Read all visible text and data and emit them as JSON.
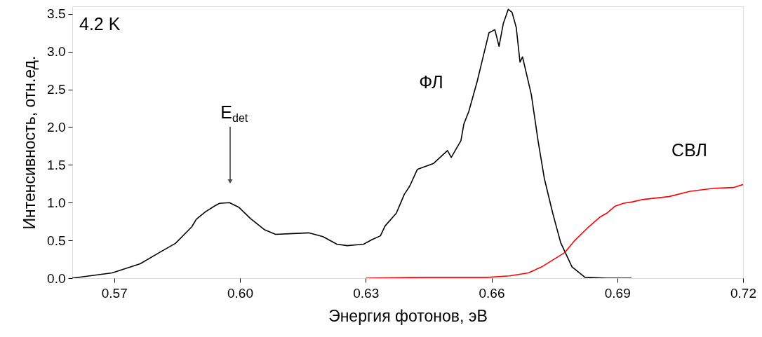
{
  "chart_data": {
    "type": "line",
    "xlabel": "Энергия фотонов, эВ",
    "ylabel": "Интенсивность, отн.ед.",
    "xlim": [
      0.56,
      0.72
    ],
    "ylim": [
      0,
      3.6
    ],
    "xticks": [
      {
        "value": 0.57,
        "label": "0.57"
      },
      {
        "value": 0.6,
        "label": "0.60"
      },
      {
        "value": 0.63,
        "label": "0.63"
      },
      {
        "value": 0.66,
        "label": "0.66"
      },
      {
        "value": 0.69,
        "label": "0.69"
      },
      {
        "value": 0.72,
        "label": "0.72"
      }
    ],
    "yticks": [
      {
        "value": 0,
        "label": "0.0"
      },
      {
        "value": 0.5,
        "label": "0.5"
      },
      {
        "value": 1,
        "label": "1.0"
      },
      {
        "value": 1.5,
        "label": "1.5"
      },
      {
        "value": 2,
        "label": "2.0"
      },
      {
        "value": 2.5,
        "label": "2.5"
      },
      {
        "value": 3,
        "label": "3.0"
      },
      {
        "value": 3.5,
        "label": "3.5"
      }
    ],
    "grid": false,
    "marker": "none",
    "line_style": "solid",
    "annotations": [
      "4.2 K",
      "E$_{det}$"
    ],
    "series": [
      {
        "name": "ФЛ",
        "color": "#000000",
        "x": [
          0.56,
          0.5695,
          0.5762,
          0.5808,
          0.5846,
          0.5885,
          0.5896,
          0.5918,
          0.5941,
          0.5951,
          0.5975,
          0.5997,
          0.6025,
          0.6059,
          0.6085,
          0.6126,
          0.6164,
          0.6198,
          0.6231,
          0.6256,
          0.6295,
          0.6315,
          0.6335,
          0.6346,
          0.6373,
          0.6392,
          0.6405,
          0.6423,
          0.6462,
          0.6495,
          0.6504,
          0.6527,
          0.6534,
          0.6546,
          0.6566,
          0.6583,
          0.6594,
          0.6608,
          0.6618,
          0.6628,
          0.664,
          0.6649,
          0.6659,
          0.6668,
          0.6674,
          0.6695,
          0.6711,
          0.6726,
          0.6746,
          0.6765,
          0.6792,
          0.6823,
          0.6875,
          0.6934
        ],
        "values": [
          0.0,
          0.07,
          0.19,
          0.34,
          0.46,
          0.68,
          0.78,
          0.88,
          0.96,
          0.99,
          1.0,
          0.94,
          0.79,
          0.64,
          0.58,
          0.59,
          0.6,
          0.55,
          0.45,
          0.43,
          0.45,
          0.51,
          0.56,
          0.69,
          0.86,
          1.11,
          1.22,
          1.44,
          1.52,
          1.69,
          1.6,
          1.82,
          2.04,
          2.21,
          2.61,
          3.0,
          3.25,
          3.29,
          3.07,
          3.37,
          3.56,
          3.52,
          3.32,
          2.86,
          2.93,
          2.43,
          1.82,
          1.32,
          0.86,
          0.47,
          0.15,
          0.01,
          0.0,
          0.0
        ]
      },
      {
        "name": "СВЛ",
        "color": "#ff0000",
        "x": [
          0.6301,
          0.6444,
          0.6591,
          0.6643,
          0.6688,
          0.672,
          0.6746,
          0.6775,
          0.6797,
          0.683,
          0.6859,
          0.6875,
          0.6894,
          0.6914,
          0.6936,
          0.6959,
          0.7023,
          0.7074,
          0.7131,
          0.7177,
          0.72
        ],
        "values": [
          0.0,
          0.01,
          0.01,
          0.03,
          0.07,
          0.15,
          0.24,
          0.34,
          0.49,
          0.67,
          0.81,
          0.86,
          0.95,
          0.99,
          1.01,
          1.04,
          1.08,
          1.15,
          1.19,
          1.2,
          1.24
        ]
      }
    ]
  }
}
